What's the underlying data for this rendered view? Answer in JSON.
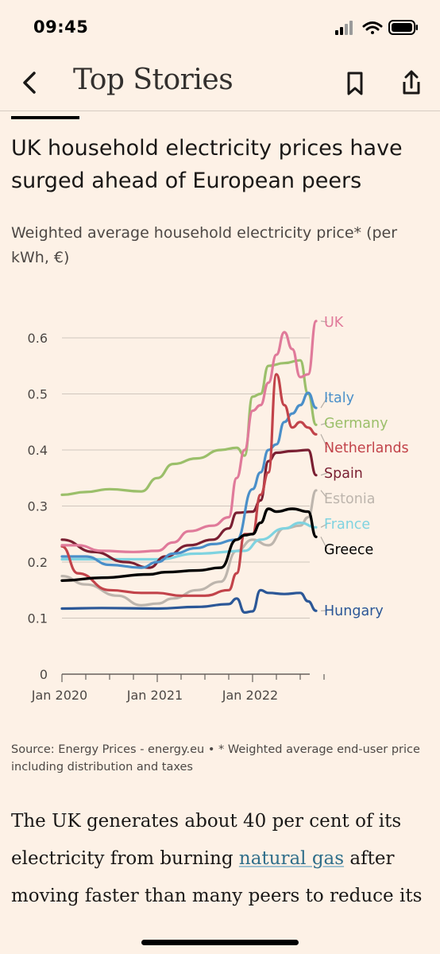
{
  "status_bar": {
    "time": "09:45"
  },
  "nav": {
    "title": "Top Stories"
  },
  "article": {
    "headline": "UK household electricity prices have surged ahead of European peers",
    "body_before_link": "The UK generates about 40 per cent of its electricity from burning ",
    "body_link": "natural gas",
    "body_after_link": " after moving faster than many peers to reduce its"
  },
  "chart_data": {
    "type": "line",
    "title": "",
    "subtitle": "Weighted average household electricity price* (per kWh, €)",
    "source": "Source: Energy Prices - energy.eu • * Weighted average end-user price including distribution and taxes",
    "xlabel": "",
    "ylabel": "",
    "ylim": [
      0,
      0.6
    ],
    "y_ticks": [
      "0",
      "0.1",
      "0.2",
      "0.3",
      "0.4",
      "0.5",
      "0.6"
    ],
    "x_ticks": [
      "Jan 2020",
      "Jan 2021",
      "Jan 2022"
    ],
    "grid": true,
    "legend": "direct labels at right end of lines",
    "series": [
      {
        "name": "UK",
        "color": "#e07a9a",
        "points": [
          [
            "2020-01",
            0.23
          ],
          [
            "2020-03",
            0.23
          ],
          [
            "2020-06",
            0.22
          ],
          [
            "2020-10",
            0.218
          ],
          [
            "2021-01",
            0.22
          ],
          [
            "2021-03",
            0.235
          ],
          [
            "2021-05",
            0.255
          ],
          [
            "2021-08",
            0.265
          ],
          [
            "2021-10",
            0.28
          ],
          [
            "2021-11",
            0.35
          ],
          [
            "2021-12",
            0.4
          ],
          [
            "2022-01",
            0.47
          ],
          [
            "2022-02",
            0.48
          ],
          [
            "2022-03",
            0.52
          ],
          [
            "2022-04",
            0.57
          ],
          [
            "2022-05",
            0.61
          ],
          [
            "2022-06",
            0.58
          ],
          [
            "2022-07",
            0.53
          ],
          [
            "2022-08",
            0.535
          ],
          [
            "2022-09",
            0.63
          ]
        ]
      },
      {
        "name": "Italy",
        "color": "#4a8fc9",
        "points": [
          [
            "2020-01",
            0.21
          ],
          [
            "2020-04",
            0.21
          ],
          [
            "2020-07",
            0.195
          ],
          [
            "2020-11",
            0.19
          ],
          [
            "2021-01",
            0.2
          ],
          [
            "2021-03",
            0.215
          ],
          [
            "2021-06",
            0.225
          ],
          [
            "2021-08",
            0.232
          ],
          [
            "2021-11",
            0.24
          ],
          [
            "2022-01",
            0.33
          ],
          [
            "2022-02",
            0.36
          ],
          [
            "2022-03",
            0.4
          ],
          [
            "2022-04",
            0.41
          ],
          [
            "2022-05",
            0.45
          ],
          [
            "2022-06",
            0.465
          ],
          [
            "2022-07",
            0.48
          ],
          [
            "2022-08",
            0.502
          ],
          [
            "2022-09",
            0.475
          ]
        ]
      },
      {
        "name": "Germany",
        "color": "#9bbf6a",
        "points": [
          [
            "2020-01",
            0.32
          ],
          [
            "2020-04",
            0.325
          ],
          [
            "2020-07",
            0.33
          ],
          [
            "2020-11",
            0.326
          ],
          [
            "2021-01",
            0.35
          ],
          [
            "2021-03",
            0.375
          ],
          [
            "2021-06",
            0.385
          ],
          [
            "2021-09",
            0.4
          ],
          [
            "2021-11",
            0.404
          ],
          [
            "2021-12",
            0.39
          ],
          [
            "2022-01",
            0.495
          ],
          [
            "2022-02",
            0.5
          ],
          [
            "2022-03",
            0.55
          ],
          [
            "2022-05",
            0.555
          ],
          [
            "2022-07",
            0.56
          ],
          [
            "2022-08",
            0.5
          ],
          [
            "2022-09",
            0.445
          ]
        ]
      },
      {
        "name": "Netherlands",
        "color": "#c2434a",
        "points": [
          [
            "2020-01",
            0.228
          ],
          [
            "2020-03",
            0.18
          ],
          [
            "2020-07",
            0.15
          ],
          [
            "2020-11",
            0.145
          ],
          [
            "2021-01",
            0.145
          ],
          [
            "2021-04",
            0.14
          ],
          [
            "2021-07",
            0.14
          ],
          [
            "2021-10",
            0.15
          ],
          [
            "2021-11",
            0.18
          ],
          [
            "2021-12",
            0.25
          ],
          [
            "2022-01",
            0.25
          ],
          [
            "2022-02",
            0.32
          ],
          [
            "2022-03",
            0.36
          ],
          [
            "2022-04",
            0.535
          ],
          [
            "2022-05",
            0.48
          ],
          [
            "2022-06",
            0.44
          ],
          [
            "2022-07",
            0.45
          ],
          [
            "2022-08",
            0.44
          ],
          [
            "2022-09",
            0.428
          ]
        ]
      },
      {
        "name": "Spain",
        "color": "#7a1f32",
        "points": [
          [
            "2020-01",
            0.24
          ],
          [
            "2020-05",
            0.218
          ],
          [
            "2020-09",
            0.2
          ],
          [
            "2020-12",
            0.19
          ],
          [
            "2021-02",
            0.21
          ],
          [
            "2021-05",
            0.23
          ],
          [
            "2021-08",
            0.24
          ],
          [
            "2021-10",
            0.26
          ],
          [
            "2021-11",
            0.288
          ],
          [
            "2022-01",
            0.29
          ],
          [
            "2022-02",
            0.31
          ],
          [
            "2022-03",
            0.38
          ],
          [
            "2022-04",
            0.395
          ],
          [
            "2022-06",
            0.398
          ],
          [
            "2022-08",
            0.4
          ],
          [
            "2022-09",
            0.355
          ]
        ]
      },
      {
        "name": "Estonia",
        "color": "#bdb5ad",
        "points": [
          [
            "2020-01",
            0.175
          ],
          [
            "2020-04",
            0.16
          ],
          [
            "2020-08",
            0.14
          ],
          [
            "2020-11",
            0.123
          ],
          [
            "2021-01",
            0.126
          ],
          [
            "2021-03",
            0.135
          ],
          [
            "2021-06",
            0.15
          ],
          [
            "2021-09",
            0.165
          ],
          [
            "2021-11",
            0.22
          ],
          [
            "2022-01",
            0.24
          ],
          [
            "2022-03",
            0.23
          ],
          [
            "2022-05",
            0.26
          ],
          [
            "2022-07",
            0.265
          ],
          [
            "2022-08",
            0.28
          ],
          [
            "2022-09",
            0.328
          ]
        ]
      },
      {
        "name": "France",
        "color": "#7fd3e0",
        "points": [
          [
            "2020-01",
            0.205
          ],
          [
            "2020-06",
            0.205
          ],
          [
            "2021-01",
            0.205
          ],
          [
            "2021-06",
            0.215
          ],
          [
            "2021-12",
            0.22
          ],
          [
            "2022-02",
            0.24
          ],
          [
            "2022-05",
            0.26
          ],
          [
            "2022-07",
            0.27
          ],
          [
            "2022-09",
            0.262
          ]
        ]
      },
      {
        "name": "Greece",
        "color": "#000000",
        "points": [
          [
            "2020-01",
            0.167
          ],
          [
            "2020-06",
            0.172
          ],
          [
            "2020-12",
            0.178
          ],
          [
            "2021-02",
            0.182
          ],
          [
            "2021-06",
            0.185
          ],
          [
            "2021-09",
            0.19
          ],
          [
            "2021-11",
            0.24
          ],
          [
            "2021-12",
            0.248
          ],
          [
            "2022-01",
            0.25
          ],
          [
            "2022-02",
            0.27
          ],
          [
            "2022-03",
            0.295
          ],
          [
            "2022-04",
            0.29
          ],
          [
            "2022-06",
            0.295
          ],
          [
            "2022-08",
            0.29
          ],
          [
            "2022-09",
            0.245
          ]
        ]
      },
      {
        "name": "Hungary",
        "color": "#2b5797",
        "points": [
          [
            "2020-01",
            0.117
          ],
          [
            "2020-06",
            0.118
          ],
          [
            "2021-01",
            0.117
          ],
          [
            "2021-06",
            0.12
          ],
          [
            "2021-10",
            0.125
          ],
          [
            "2021-11",
            0.135
          ],
          [
            "2021-12",
            0.11
          ],
          [
            "2022-01",
            0.112
          ],
          [
            "2022-02",
            0.15
          ],
          [
            "2022-03",
            0.145
          ],
          [
            "2022-05",
            0.143
          ],
          [
            "2022-07",
            0.145
          ],
          [
            "2022-08",
            0.13
          ],
          [
            "2022-09",
            0.113
          ]
        ]
      }
    ]
  }
}
